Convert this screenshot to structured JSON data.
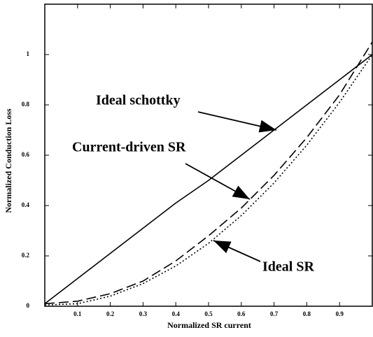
{
  "chart_data": {
    "type": "line",
    "xlabel": "Normalized SR current",
    "ylabel": "Normalized Conduction Loss",
    "x": [
      0,
      0.1,
      0.2,
      0.3,
      0.4,
      0.5,
      0.6,
      0.7,
      0.8,
      0.9,
      1.0
    ],
    "series": [
      {
        "name": "Ideal schottky",
        "color": "#000000",
        "style": "solid",
        "values": [
          0.01,
          0.11,
          0.21,
          0.31,
          0.41,
          0.5,
          0.6,
          0.7,
          0.8,
          0.9,
          1.0
        ]
      },
      {
        "name": "Current-driven SR",
        "color": "#000000",
        "style": "dashed",
        "values": [
          0.01,
          0.02,
          0.05,
          0.1,
          0.18,
          0.28,
          0.39,
          0.52,
          0.67,
          0.84,
          1.05
        ]
      },
      {
        "name": "Ideal SR",
        "color": "#000000",
        "style": "dotted",
        "values": [
          0.005,
          0.01,
          0.04,
          0.09,
          0.16,
          0.25,
          0.36,
          0.49,
          0.64,
          0.81,
          1.0
        ]
      }
    ],
    "xlim": [
      0,
      1
    ],
    "xticks": [
      0.1,
      0.2,
      0.3,
      0.4,
      0.5,
      0.6,
      0.7,
      0.8,
      0.9
    ],
    "ylim": [
      0,
      1.2
    ],
    "yticks": [
      0,
      0.2,
      0.4,
      0.6,
      0.8,
      1
    ],
    "grid": false
  }
}
